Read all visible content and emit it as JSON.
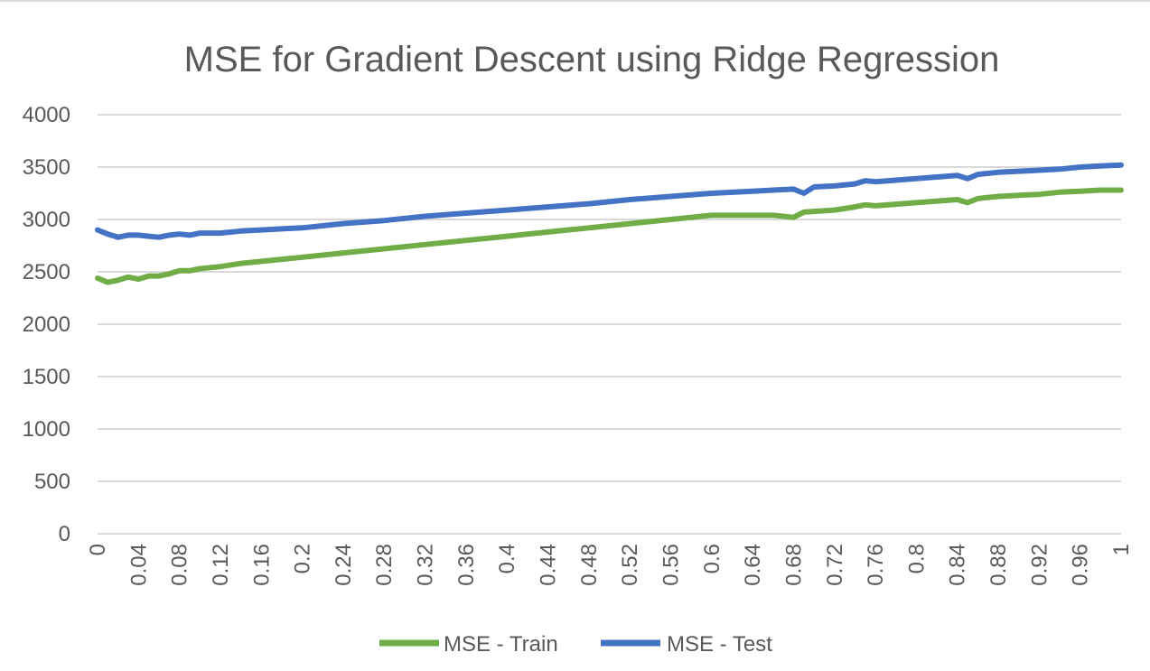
{
  "chart_data": {
    "type": "line",
    "title": "MSE  for Gradient Descent using Ridge Regression",
    "xlabel": "",
    "ylabel": "",
    "ylim": [
      0,
      4000
    ],
    "yticks": [
      "0",
      "500",
      "1000",
      "1500",
      "2000",
      "2500",
      "3000",
      "3500",
      "4000"
    ],
    "xticks": [
      "0",
      "0.04",
      "0.08",
      "0.12",
      "0.16",
      "0.2",
      "0.24",
      "0.28",
      "0.32",
      "0.36",
      "0.4",
      "0.44",
      "0.48",
      "0.52",
      "0.56",
      "0.6",
      "0.64",
      "0.68",
      "0.72",
      "0.76",
      "0.8",
      "0.84",
      "0.88",
      "0.92",
      "0.96",
      "1"
    ],
    "grid": true,
    "legend_position": "bottom",
    "series": [
      {
        "name": "MSE - Train",
        "color": "#70ad47",
        "x": [
          0,
          0.01,
          0.02,
          0.03,
          0.04,
          0.05,
          0.06,
          0.07,
          0.08,
          0.09,
          0.1,
          0.12,
          0.14,
          0.16,
          0.18,
          0.2,
          0.24,
          0.28,
          0.32,
          0.36,
          0.4,
          0.44,
          0.48,
          0.52,
          0.56,
          0.6,
          0.64,
          0.66,
          0.68,
          0.69,
          0.72,
          0.74,
          0.75,
          0.76,
          0.8,
          0.84,
          0.85,
          0.86,
          0.88,
          0.9,
          0.92,
          0.94,
          0.96,
          0.98,
          1.0
        ],
        "values": [
          2440,
          2400,
          2420,
          2450,
          2430,
          2460,
          2460,
          2480,
          2510,
          2510,
          2530,
          2550,
          2580,
          2600,
          2620,
          2640,
          2680,
          2720,
          2760,
          2800,
          2840,
          2880,
          2920,
          2960,
          3000,
          3040,
          3040,
          3040,
          3020,
          3070,
          3090,
          3120,
          3140,
          3130,
          3160,
          3190,
          3160,
          3200,
          3220,
          3230,
          3240,
          3260,
          3270,
          3280,
          3280
        ]
      },
      {
        "name": "MSE - Test",
        "color": "#4472c4",
        "x": [
          0,
          0.01,
          0.02,
          0.03,
          0.04,
          0.05,
          0.06,
          0.07,
          0.08,
          0.09,
          0.1,
          0.12,
          0.14,
          0.16,
          0.18,
          0.2,
          0.24,
          0.28,
          0.32,
          0.36,
          0.4,
          0.44,
          0.48,
          0.52,
          0.56,
          0.6,
          0.64,
          0.66,
          0.68,
          0.69,
          0.7,
          0.72,
          0.74,
          0.75,
          0.76,
          0.8,
          0.84,
          0.85,
          0.86,
          0.88,
          0.9,
          0.92,
          0.94,
          0.96,
          0.98,
          1.0
        ],
        "values": [
          2900,
          2860,
          2830,
          2850,
          2850,
          2840,
          2830,
          2850,
          2860,
          2850,
          2870,
          2870,
          2890,
          2900,
          2910,
          2920,
          2960,
          2990,
          3030,
          3060,
          3090,
          3120,
          3150,
          3190,
          3220,
          3250,
          3270,
          3280,
          3290,
          3250,
          3310,
          3320,
          3340,
          3370,
          3360,
          3390,
          3420,
          3390,
          3430,
          3450,
          3460,
          3470,
          3480,
          3500,
          3510,
          3520
        ]
      }
    ]
  }
}
